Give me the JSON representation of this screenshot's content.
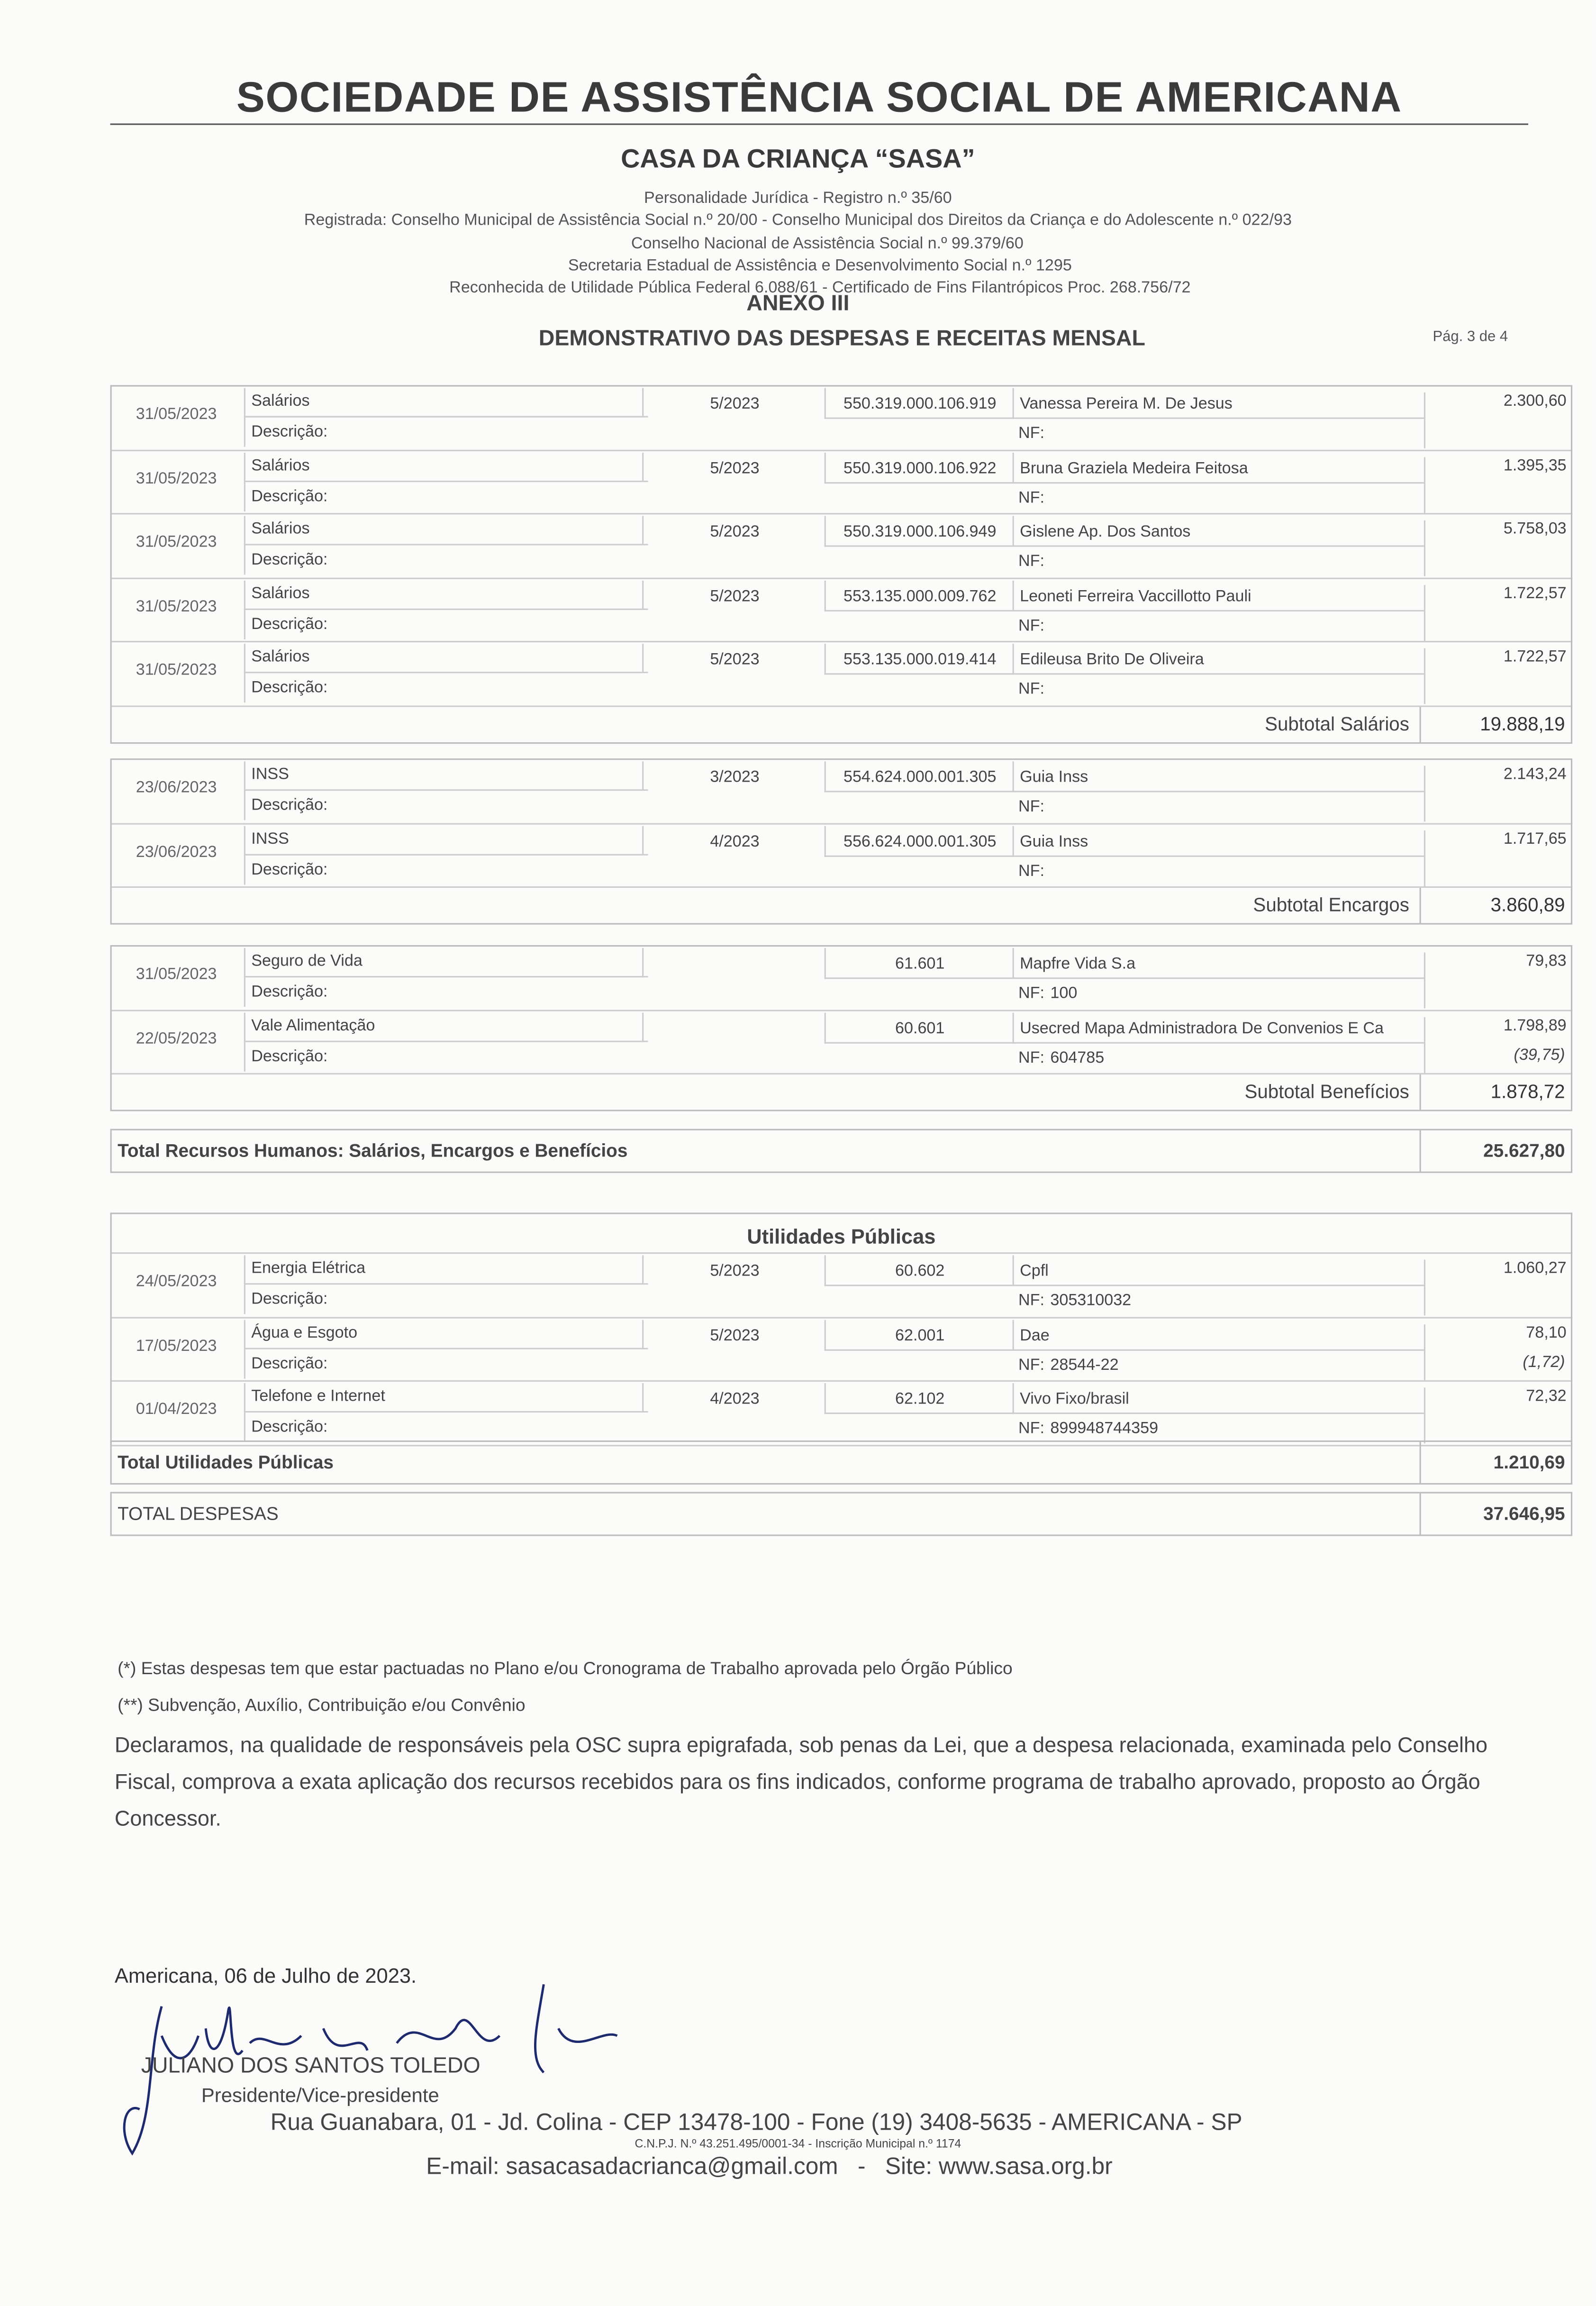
{
  "header": {
    "title": "SOCIEDADE DE ASSISTÊNCIA SOCIAL DE AMERICANA",
    "subtitle": "CASA DA CRIANÇA “SASA”",
    "lines": [
      "Personalidade Jurídica - Registro n.º 35/60",
      "Registrada: Conselho Municipal de Assistência Social n.º 20/00 - Conselho Municipal dos Direitos da Criança e do Adolescente n.º 022/93",
      "Conselho Nacional de Assistência Social n.º 99.379/60",
      "Secretaria Estadual de Assistência e Desenvolvimento Social n.º 1295",
      "Reconhecida de Utilidade Pública Federal 6.088/61 - Certificado de Fins Filantrópicos Proc. 268.756/72"
    ],
    "annex": "ANEXO III",
    "doc_title": "DEMONSTRATIVO DAS DESPESAS E RECEITAS MENSAL",
    "page": "Pág. 3 de 4"
  },
  "labels": {
    "desc": "Descrição:",
    "nf": "NF:"
  },
  "salarios": {
    "rows": [
      {
        "date": "31/05/2023",
        "cat": "Salários",
        "comp": "5/2023",
        "doc": "550.319.000.106.919",
        "sup": "Vanessa Pereira M. De Jesus",
        "nf": "",
        "val": "2.300,60"
      },
      {
        "date": "31/05/2023",
        "cat": "Salários",
        "comp": "5/2023",
        "doc": "550.319.000.106.922",
        "sup": "Bruna Graziela Medeira Feitosa",
        "nf": "",
        "val": "1.395,35"
      },
      {
        "date": "31/05/2023",
        "cat": "Salários",
        "comp": "5/2023",
        "doc": "550.319.000.106.949",
        "sup": "Gislene Ap. Dos Santos",
        "nf": "",
        "val": "5.758,03"
      },
      {
        "date": "31/05/2023",
        "cat": "Salários",
        "comp": "5/2023",
        "doc": "553.135.000.009.762",
        "sup": "Leoneti Ferreira Vaccillotto Pauli",
        "nf": "",
        "val": "1.722,57"
      },
      {
        "date": "31/05/2023",
        "cat": "Salários",
        "comp": "5/2023",
        "doc": "553.135.000.019.414",
        "sup": "Edileusa Brito De Oliveira",
        "nf": "",
        "val": "1.722,57"
      }
    ],
    "subtotal_label": "Subtotal Salários",
    "subtotal": "19.888,19"
  },
  "encargos": {
    "rows": [
      {
        "date": "23/06/2023",
        "cat": "INSS",
        "comp": "3/2023",
        "doc": "554.624.000.001.305",
        "sup": "Guia Inss",
        "nf": "",
        "val": "2.143,24"
      },
      {
        "date": "23/06/2023",
        "cat": "INSS",
        "comp": "4/2023",
        "doc": "556.624.000.001.305",
        "sup": "Guia Inss",
        "nf": "",
        "val": "1.717,65"
      }
    ],
    "subtotal_label": "Subtotal Encargos",
    "subtotal": "3.860,89"
  },
  "beneficios": {
    "rows": [
      {
        "date": "31/05/2023",
        "cat": "Seguro de Vida",
        "comp": "",
        "doc": "61.601",
        "sup": "Mapfre Vida S.a",
        "nf": "100",
        "val": "79,83"
      },
      {
        "date": "22/05/2023",
        "cat": "Vale Alimentação",
        "comp": "",
        "doc": "60.601",
        "sup": "Usecred Mapa Administradora De Convenios E Ca",
        "nf": "604785",
        "val": "1.798,89",
        "extra": "(39,75)"
      }
    ],
    "subtotal_label": "Subtotal Benefícios",
    "subtotal": "1.878,72"
  },
  "total_rh": {
    "label": "Total Recursos Humanos: Salários, Encargos e Benefícios",
    "value": "25.627,80"
  },
  "utilidades": {
    "title": "Utilidades Públicas",
    "rows": [
      {
        "date": "24/05/2023",
        "cat": "Energia Elétrica",
        "comp": "5/2023",
        "doc": "60.602",
        "sup": "Cpfl",
        "nf": "305310032",
        "val": "1.060,27"
      },
      {
        "date": "17/05/2023",
        "cat": "Água e Esgoto",
        "comp": "5/2023",
        "doc": "62.001",
        "sup": "Dae",
        "nf": "28544-22",
        "val": "78,10",
        "extra": "(1,72)"
      },
      {
        "date": "01/04/2023",
        "cat": "Telefone e Internet",
        "comp": "4/2023",
        "doc": "62.102",
        "sup": "Vivo Fixo/brasil",
        "nf": "899948744359",
        "val": "72,32"
      }
    ]
  },
  "total_util": {
    "label": "Total Utilidades Públicas",
    "value": "1.210,69"
  },
  "total_desp": {
    "label": "TOTAL DESPESAS",
    "value": "37.646,95"
  },
  "notes": [
    "(*) Estas despesas tem que estar pactuadas no Plano e/ou Cronograma de Trabalho aprovada pelo Órgão Público",
    "(**) Subvenção, Auxílio, Contribuição e/ou Convênio"
  ],
  "declaration": "Declaramos, na qualidade de responsáveis pela OSC supra epigrafada, sob penas da Lei, que a despesa relacionada, examinada pelo Conselho Fiscal, comprova a exata aplicação dos recursos recebidos para os fins indicados, conforme programa de trabalho aprovado, proposto ao Órgão Concessor.",
  "place_date": "Americana, 06 de Julho de 2023.",
  "signature": "Juliano dos Santos Toledo",
  "signer": "JULIANO DOS SANTOS TOLEDO",
  "role": "Presidente/Vice-presidente",
  "address": "Rua Guanabara, 01 - Jd. Colina - CEP 13478-100 - Fone (19) 3408-5635 - AMERICANA - SP",
  "cnpj": "C.N.P.J. N.º 43.251.495/0001-34  -  Inscrição Municipal n.º 1174",
  "contact": "E-mail: sasacasadacrianca@gmail.com   -   Site: www.sasa.org.br"
}
